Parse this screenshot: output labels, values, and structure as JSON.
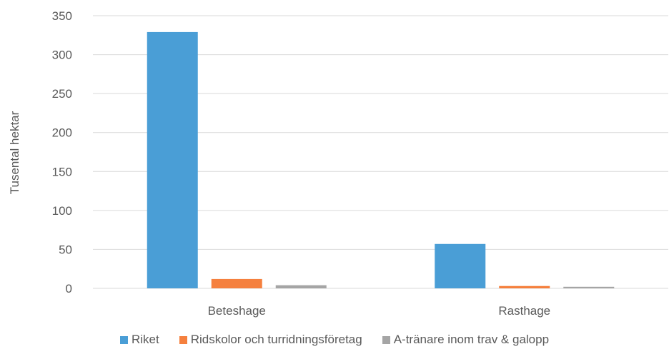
{
  "chart_data": {
    "type": "bar",
    "categories": [
      "Beteshage",
      "Rasthage"
    ],
    "series": [
      {
        "name": "Riket",
        "values": [
          329,
          57
        ],
        "color": "#4a9ed6"
      },
      {
        "name": "Ridskolor och turridningsföretag",
        "values": [
          12,
          3
        ],
        "color": "#f5803e"
      },
      {
        "name": "A-tränare inom trav & galopp",
        "values": [
          4,
          2
        ],
        "color": "#a5a5a5"
      }
    ],
    "ylabel": "Tusental hektar",
    "ylim": [
      0,
      350
    ],
    "yticks": [
      0,
      50,
      100,
      150,
      200,
      250,
      300,
      350
    ],
    "grid": true,
    "legend_position": "bottom"
  }
}
